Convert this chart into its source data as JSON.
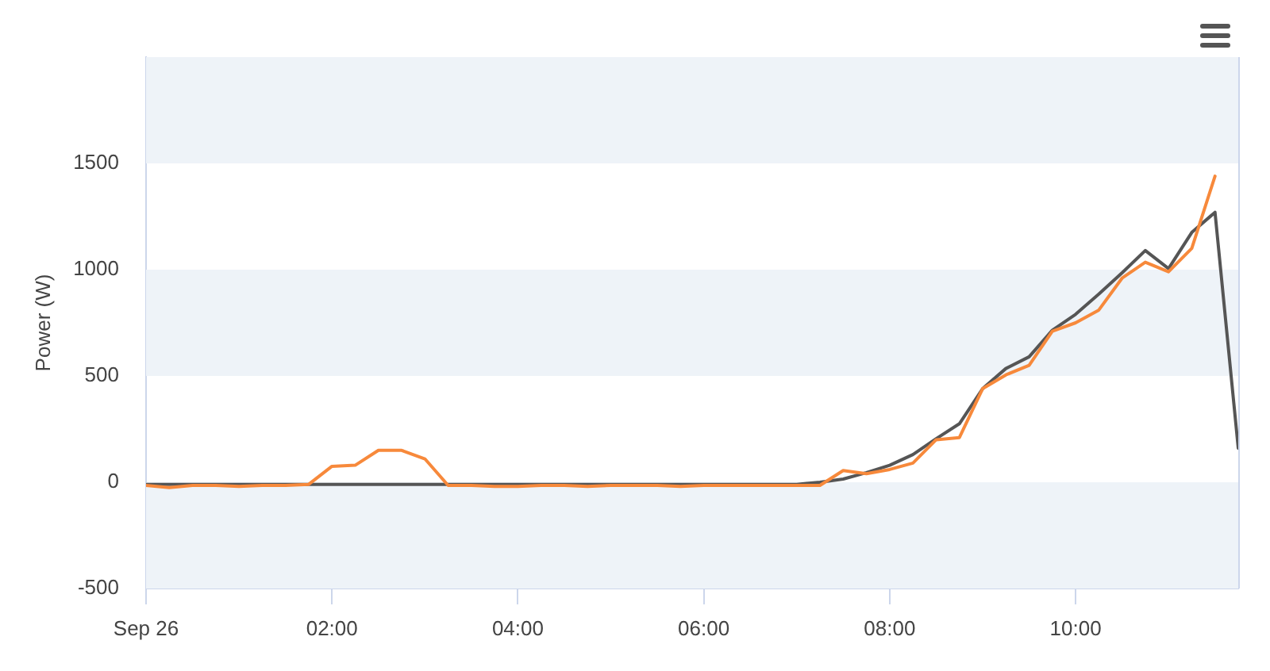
{
  "chart_data": {
    "type": "line",
    "ylabel": "Power (W)",
    "x": [
      0,
      0.25,
      0.5,
      0.75,
      1,
      1.25,
      1.5,
      1.75,
      2,
      2.25,
      2.5,
      2.75,
      3,
      3.25,
      3.5,
      3.75,
      4,
      4.25,
      4.5,
      4.75,
      5,
      5.25,
      5.5,
      5.75,
      6,
      6.25,
      6.5,
      6.75,
      7,
      7.25,
      7.5,
      7.75,
      8,
      8.25,
      8.5,
      8.75,
      9,
      9.25,
      9.5,
      9.75,
      10,
      10.25,
      10.5,
      10.75,
      11,
      11.25,
      11.5,
      11.75
    ],
    "xlim": [
      0,
      11.75
    ],
    "xticks": [
      {
        "value": 0,
        "label": "Sep 26"
      },
      {
        "value": 2,
        "label": "02:00"
      },
      {
        "value": 4,
        "label": "04:00"
      },
      {
        "value": 6,
        "label": "06:00"
      },
      {
        "value": 8,
        "label": "08:00"
      },
      {
        "value": 10,
        "label": "10:00"
      }
    ],
    "ylim": [
      -500,
      2000
    ],
    "yticks": [
      -500,
      0,
      500,
      1000,
      1500
    ],
    "series": [
      {
        "color": "#555555",
        "values": [
          -10,
          -10,
          -10,
          -10,
          -10,
          -10,
          -10,
          -10,
          -10,
          -10,
          -10,
          -10,
          -10,
          -10,
          -10,
          -10,
          -10,
          -10,
          -10,
          -10,
          -10,
          -10,
          -10,
          -10,
          -10,
          -10,
          -10,
          -10,
          -10,
          0,
          15,
          45,
          80,
          130,
          205,
          275,
          440,
          535,
          590,
          715,
          790,
          885,
          985,
          1090,
          1005,
          1175,
          1270,
          160
        ]
      },
      {
        "color": "#f7893b",
        "values": [
          -15,
          -25,
          -15,
          -15,
          -20,
          -15,
          -15,
          -10,
          75,
          80,
          150,
          150,
          110,
          -15,
          -15,
          -20,
          -20,
          -15,
          -15,
          -20,
          -15,
          -15,
          -15,
          -20,
          -15,
          -15,
          -15,
          -15,
          -15,
          -15,
          55,
          40,
          60,
          90,
          200,
          210,
          440,
          505,
          550,
          710,
          750,
          810,
          960,
          1035,
          990,
          1100,
          1440,
          null
        ]
      }
    ],
    "bands": [
      {
        "axis": "y",
        "from": -500,
        "to": 0,
        "color": "#eef3f8"
      },
      {
        "axis": "y",
        "from": 500,
        "to": 1000,
        "color": "#eef3f8"
      },
      {
        "axis": "y",
        "from": 1500,
        "to": 2000,
        "color": "#eef3f8"
      }
    ],
    "grid": false,
    "legend": false,
    "marker": "none",
    "line_style": "solid"
  }
}
